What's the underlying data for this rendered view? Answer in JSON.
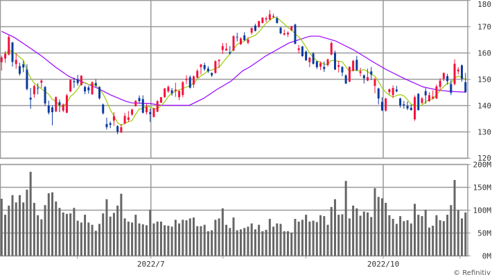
{
  "chart_data": {
    "type": "candlestick",
    "price_axis": {
      "ticks": [
        180,
        170,
        160,
        150,
        140,
        130,
        120
      ],
      "labels": [
        "180",
        "170",
        "160",
        "150",
        "140",
        "130",
        "120"
      ],
      "range": [
        120,
        180
      ]
    },
    "volume_axis": {
      "ticks": [
        200,
        150,
        100,
        50,
        0
      ],
      "labels": [
        "200M",
        "150M",
        "100M",
        "50M",
        "0M"
      ],
      "range": [
        0,
        200
      ],
      "unit": "M"
    },
    "x_labels": [
      {
        "label": "2022/7",
        "index": 42.2
      },
      {
        "label": "2022/10",
        "index": 106.3
      }
    ],
    "month_ticks": [
      21.9,
      42.2,
      62.1,
      85.0,
      106.3,
      127.5
    ],
    "gridlines": true,
    "colors": {
      "up": "#f2123f",
      "down": "#0a3a9e",
      "ma_short": "#99cc00",
      "ma_long": "#9900ff",
      "volume": "#666666",
      "grid": "#999999"
    },
    "ma_short_period": 5,
    "ohlc": [
      [
        156.5,
        159,
        153.3,
        158.3
      ],
      [
        157.9,
        160.7,
        156.3,
        159.7
      ],
      [
        159.4,
        166.8,
        159.1,
        166.1
      ],
      [
        164,
        164.2,
        154.8,
        156.6
      ],
      [
        155.8,
        159.8,
        154,
        157.4
      ],
      [
        155,
        156.3,
        151.4,
        152.1
      ],
      [
        155.7,
        157,
        152.7,
        154.5
      ],
      [
        153.7,
        155.7,
        145.8,
        146.3
      ],
      [
        143,
        146.7,
        138.8,
        142.3
      ],
      [
        144.3,
        148,
        143,
        147.4
      ],
      [
        146.8,
        148.5,
        144.3,
        146.5
      ],
      [
        148.7,
        150,
        146.7,
        149.5
      ],
      [
        147.1,
        147.4,
        139.9,
        140.8
      ],
      [
        140,
        141.9,
        136.6,
        137.3
      ],
      [
        139.3,
        140.1,
        132.5,
        137.5
      ],
      [
        137.8,
        143.5,
        137.5,
        143.2
      ],
      [
        141.3,
        142.3,
        137.5,
        140.2
      ],
      [
        138.1,
        140.8,
        137.5,
        140.4
      ],
      [
        137.3,
        144.5,
        137.1,
        143.9
      ],
      [
        145.4,
        150,
        145.1,
        149.8
      ],
      [
        149.3,
        150.6,
        146.7,
        148.9
      ],
      [
        150,
        151.7,
        147.6,
        148.5
      ],
      [
        147.8,
        151.5,
        147.6,
        151.4
      ],
      [
        147.1,
        147.6,
        144.3,
        145.4
      ],
      [
        146.9,
        147.6,
        144.5,
        145.8
      ],
      [
        144.3,
        149.2,
        144.1,
        148.9
      ],
      [
        148.6,
        150,
        147.1,
        147.6
      ],
      [
        147.1,
        147.3,
        142.3,
        142.8
      ],
      [
        140.4,
        140.8,
        136.6,
        137.1
      ],
      [
        133,
        135.4,
        130.9,
        131.8
      ],
      [
        133.3,
        134,
        131.4,
        132.7
      ],
      [
        134.3,
        137.5,
        132.3,
        136
      ],
      [
        132.2,
        132.6,
        129.1,
        130
      ],
      [
        129.8,
        133.1,
        129.6,
        131.8
      ],
      [
        133.2,
        137.2,
        132.9,
        136.1
      ],
      [
        134.6,
        137.9,
        133.8,
        135.5
      ],
      [
        136.6,
        138.8,
        136.1,
        138.5
      ],
      [
        139.8,
        142.1,
        139.6,
        141.8
      ],
      [
        142.9,
        143.9,
        141,
        141.7
      ],
      [
        142.5,
        143.9,
        137,
        137.3
      ],
      [
        137.5,
        140.8,
        136.6,
        139.5
      ],
      [
        137.5,
        138.8,
        133.8,
        136.8
      ],
      [
        135.7,
        139.2,
        135.5,
        138.9
      ],
      [
        137.7,
        142.1,
        137.5,
        141.7
      ],
      [
        141.1,
        143.3,
        141,
        143.2
      ],
      [
        143.2,
        146.7,
        143,
        146.5
      ],
      [
        145.4,
        147.7,
        144.9,
        147.1
      ],
      [
        145.8,
        146.7,
        143.8,
        144.7
      ],
      [
        145.5,
        148.7,
        143.3,
        146.1
      ],
      [
        143.2,
        145.8,
        142.1,
        145.6
      ],
      [
        144,
        149.3,
        143.2,
        148.9
      ],
      [
        149.7,
        151.5,
        148.2,
        150.2
      ],
      [
        150.8,
        151.5,
        146.5,
        146.8
      ],
      [
        148,
        151.5,
        146.8,
        151.1
      ],
      [
        150.6,
        153.9,
        150.4,
        153.2
      ],
      [
        154.6,
        155.9,
        151.9,
        155.6
      ],
      [
        155.4,
        156.3,
        153.2,
        153.9
      ],
      [
        154.1,
        155,
        152.4,
        153
      ],
      [
        152.4,
        152.6,
        150.9,
        151.5
      ],
      [
        152.4,
        157.2,
        152.1,
        156.9
      ],
      [
        156.9,
        157.6,
        154.3,
        157.4
      ],
      [
        161.1,
        163.8,
        159.6,
        162.6
      ],
      [
        160.9,
        163.8,
        160.9,
        161.6
      ],
      [
        160.3,
        162.6,
        159.4,
        159.8
      ],
      [
        160.9,
        166.7,
        160.7,
        166.4
      ],
      [
        166.1,
        167.7,
        164.4,
        166
      ],
      [
        163.3,
        166,
        163.1,
        165.5
      ],
      [
        166.7,
        167.9,
        164.6,
        164.9
      ],
      [
        163.9,
        166,
        163.3,
        165.1
      ],
      [
        167.7,
        169.6,
        167,
        169.5
      ],
      [
        170.4,
        171.1,
        168.2,
        168.4
      ],
      [
        169.9,
        172.3,
        169.5,
        172.1
      ],
      [
        171.4,
        173.6,
        171.2,
        173.4
      ],
      [
        172.7,
        173.9,
        171.7,
        173.2
      ],
      [
        172.7,
        176.3,
        172.5,
        174.7
      ],
      [
        173.7,
        174.9,
        173.2,
        174.1
      ],
      [
        173.2,
        173.9,
        171.2,
        171.4
      ],
      [
        169.6,
        169.9,
        167.1,
        167.5
      ],
      [
        167,
        168.9,
        166.6,
        167.5
      ],
      [
        167.1,
        168.2,
        166.1,
        167.7
      ],
      [
        168.6,
        170.4,
        168.3,
        170.1
      ],
      [
        170.8,
        171.1,
        163.3,
        163.5
      ],
      [
        161.1,
        163.1,
        159.8,
        161.8
      ],
      [
        162.5,
        162.6,
        158.5,
        158.8
      ],
      [
        160.5,
        160.9,
        157,
        157.2
      ],
      [
        156.5,
        158.5,
        154.6,
        158.2
      ],
      [
        159.8,
        160.3,
        155.6,
        155.9
      ],
      [
        156.8,
        157,
        153.9,
        154.6
      ],
      [
        154.8,
        156.8,
        153.5,
        156.1
      ],
      [
        154.7,
        156.8,
        152.8,
        153.9
      ],
      [
        155.4,
        157.8,
        154.8,
        157.6
      ],
      [
        159.4,
        164.4,
        159.1,
        163.8
      ],
      [
        160,
        160.9,
        153.5,
        153.7
      ],
      [
        154.7,
        157,
        152.6,
        155.4
      ],
      [
        154.7,
        155,
        151.2,
        152.6
      ],
      [
        151.5,
        151.8,
        148.2,
        148.4
      ],
      [
        149.1,
        155,
        148.9,
        154.7
      ],
      [
        153.2,
        157.4,
        153,
        157
      ],
      [
        157.4,
        158.9,
        153.2,
        153.5
      ],
      [
        152.4,
        154.4,
        151.1,
        153
      ],
      [
        151.5,
        151.8,
        148.4,
        150.4
      ],
      [
        149.5,
        154.1,
        149.3,
        150.8
      ],
      [
        153,
        154.7,
        149.7,
        151.8
      ],
      [
        147.5,
        150.6,
        144.7,
        150
      ],
      [
        146.5,
        146.8,
        140.5,
        142.7
      ],
      [
        141.4,
        143.2,
        137.9,
        138.2
      ],
      [
        138.1,
        143,
        137.7,
        142.7
      ],
      [
        145.1,
        146.5,
        144.2,
        146.2
      ],
      [
        144,
        147.7,
        142.9,
        146.7
      ],
      [
        146.1,
        147.5,
        145.1,
        145.4
      ],
      [
        142.7,
        143,
        139.2,
        140.1
      ],
      [
        140.5,
        141.8,
        138.8,
        140.1
      ],
      [
        139.9,
        141.6,
        138.3,
        138.9
      ],
      [
        139.2,
        140.4,
        138.1,
        138.3
      ],
      [
        134.8,
        143.9,
        134.2,
        143.2
      ],
      [
        144.5,
        144.7,
        138.1,
        138.3
      ],
      [
        141,
        143.3,
        140.7,
        142.7
      ],
      [
        145.5,
        146.7,
        140.7,
        143.9
      ],
      [
        141.7,
        145.1,
        141.4,
        144
      ],
      [
        142.7,
        145.8,
        142.5,
        143.4
      ],
      [
        142.7,
        148,
        142.5,
        147.3
      ],
      [
        147.1,
        150.4,
        145.8,
        149.5
      ],
      [
        150.2,
        152.6,
        149.3,
        152.4
      ],
      [
        151.2,
        152.1,
        148,
        149.3
      ],
      [
        148.2,
        149.7,
        144,
        144.9
      ],
      [
        148.2,
        157.6,
        147.7,
        155.9
      ],
      [
        153,
        154.6,
        151.9,
        153.7
      ],
      [
        155.3,
        155.6,
        149.1,
        150.2
      ],
      [
        148.9,
        152.4,
        144.9,
        145.1
      ]
    ],
    "ma_long_points": [
      [
        1,
        168.2
      ],
      [
        4.4,
        166
      ],
      [
        8.2,
        162.5
      ],
      [
        12,
        158.9
      ],
      [
        15.9,
        154.6
      ],
      [
        19.7,
        151
      ],
      [
        23.5,
        148.9
      ],
      [
        27.3,
        146.7
      ],
      [
        31.2,
        144
      ],
      [
        35,
        141.8
      ],
      [
        36.9,
        141
      ],
      [
        42,
        140.8
      ],
      [
        45.2,
        140.1
      ],
      [
        52.8,
        140.1
      ],
      [
        56.7,
        142.7
      ],
      [
        60.5,
        146.2
      ],
      [
        64.3,
        149.3
      ],
      [
        67.5,
        153.2
      ],
      [
        69.4,
        154.6
      ],
      [
        73.9,
        158.9
      ],
      [
        80.3,
        163.8
      ],
      [
        86.1,
        166.4
      ],
      [
        88.6,
        166.4
      ],
      [
        93.1,
        164.6
      ],
      [
        98.2,
        161.1
      ],
      [
        103.3,
        156.8
      ],
      [
        107.1,
        153.7
      ],
      [
        112.2,
        150.2
      ],
      [
        117.3,
        147.1
      ],
      [
        121.8,
        145.8
      ],
      [
        125,
        145.4
      ],
      [
        129,
        145.1
      ]
    ],
    "volume_millions": [
      125,
      90,
      110,
      133,
      117,
      133,
      117,
      145,
      184,
      116,
      89,
      80,
      111,
      137,
      139,
      119,
      105,
      95,
      92,
      93,
      105,
      77,
      73,
      90,
      73,
      68,
      55,
      70,
      93,
      124,
      86,
      94,
      110,
      136,
      82,
      75,
      73,
      90,
      71,
      69,
      67,
      101,
      71,
      75,
      75,
      67,
      66,
      64,
      79,
      71,
      79,
      78,
      82,
      84,
      65,
      65,
      68,
      54,
      56,
      79,
      82,
      104,
      68,
      61,
      84,
      56,
      58,
      61,
      64,
      71,
      58,
      68,
      54,
      57,
      81,
      64,
      71,
      70,
      54,
      54,
      51,
      81,
      75,
      79,
      90,
      75,
      77,
      74,
      89,
      87,
      68,
      107,
      124,
      90,
      91,
      164,
      82,
      110,
      104,
      88,
      97,
      95,
      85,
      148,
      129,
      126,
      116,
      89,
      81,
      70,
      87,
      76,
      78,
      71,
      114,
      90,
      87,
      101,
      62,
      66,
      89,
      78,
      76,
      90,
      111,
      166,
      100,
      82,
      95
    ],
    "credit": "© Refinitiv"
  }
}
